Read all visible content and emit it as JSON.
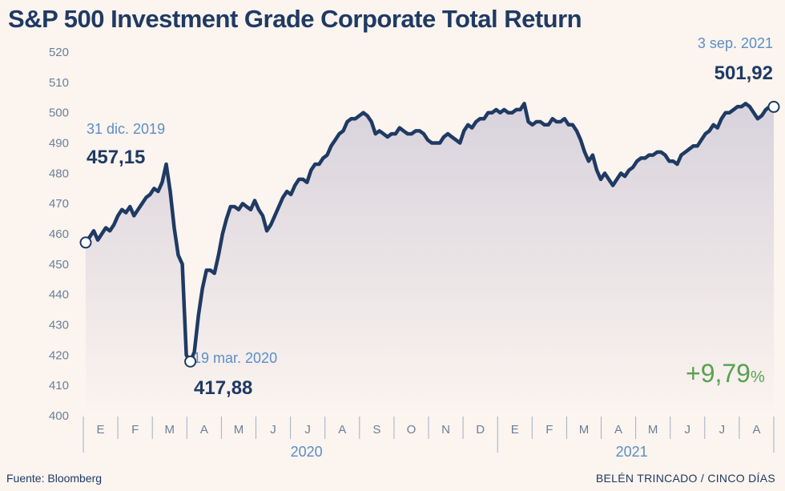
{
  "chart_data": {
    "type": "area",
    "title": "S&P 500 Investment Grade Corporate Total Return",
    "ylim": [
      400,
      520
    ],
    "y_ticks": [
      "400",
      "410",
      "420",
      "430",
      "440",
      "450",
      "460",
      "470",
      "480",
      "490",
      "500",
      "510",
      "520"
    ],
    "months": [
      "E",
      "F",
      "M",
      "A",
      "M",
      "J",
      "J",
      "A",
      "S",
      "O",
      "N",
      "D",
      "E",
      "F",
      "M",
      "A",
      "M",
      "J",
      "J",
      "A"
    ],
    "years": [
      "2020",
      "2021"
    ],
    "grid": false,
    "series": [
      {
        "values": [
          457.15,
          459,
          461,
          458,
          460,
          462,
          461,
          463,
          466,
          468,
          467,
          469,
          466,
          468,
          470,
          472,
          473,
          475,
          474,
          477,
          483,
          474,
          462,
          453,
          450,
          420,
          417.88,
          421,
          433,
          442,
          448,
          448,
          447,
          453,
          460,
          465,
          469,
          469,
          468,
          470,
          469,
          468,
          471,
          468,
          466,
          461,
          463,
          466,
          469,
          472,
          474,
          473,
          476,
          478,
          478,
          477,
          481,
          483,
          483,
          485,
          486,
          489,
          491,
          493,
          494,
          497,
          498,
          498,
          499,
          500,
          499,
          497,
          493,
          494,
          493,
          492,
          493,
          493,
          495,
          494,
          493,
          493,
          494,
          494,
          493,
          491,
          490,
          490,
          490,
          492,
          493,
          492,
          491,
          490,
          494,
          496,
          495,
          497,
          498,
          498,
          500,
          500,
          501,
          500,
          501,
          500,
          500,
          501,
          501,
          503,
          497,
          496,
          497,
          497,
          496,
          496,
          498,
          497,
          497,
          498,
          496,
          496,
          494,
          491,
          487,
          484,
          486,
          481,
          478,
          480,
          478,
          476,
          478,
          480,
          479,
          481,
          482,
          484,
          485,
          485,
          486,
          486,
          487,
          487,
          486,
          484,
          484,
          483,
          486,
          487,
          488,
          489,
          489,
          491,
          493,
          494,
          496,
          495,
          498,
          500,
          500,
          501,
          502,
          502,
          503,
          502,
          500,
          498,
          499,
          501,
          502,
          501.92
        ]
      }
    ],
    "annotations": [
      {
        "date": "31 dic. 2019",
        "value": "457,15"
      },
      {
        "date": "19 mar. 2020",
        "value": "417,88"
      },
      {
        "date": "3 sep. 2021",
        "value": "501,92"
      }
    ],
    "change": "+9,79",
    "change_unit": "%",
    "colors": {
      "line": "#1f3a63",
      "area_top": "#d8d2dc",
      "area_bottom": "#fbf4ef",
      "axis_text": "#6b7f99",
      "accent_blue": "#5b8fc4",
      "positive": "#59a14f"
    }
  },
  "footer": {
    "source": "Fuente: Bloomberg",
    "credit": "BELÉN TRINCADO / CINCO DÍAS"
  }
}
